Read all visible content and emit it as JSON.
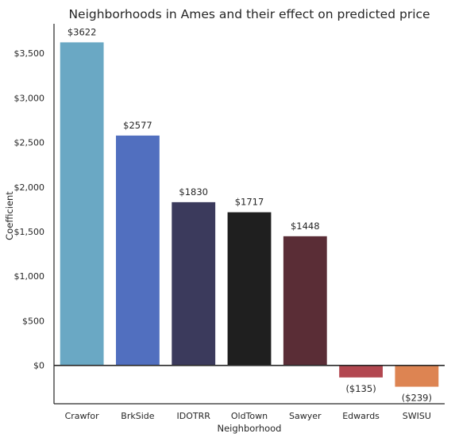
{
  "chart_data": {
    "type": "bar",
    "title": "Neighborhoods in Ames and their effect on predicted price",
    "xlabel": "Neighborhood",
    "ylabel": "Coefficient",
    "categories": [
      "Crawfor",
      "BrkSide",
      "IDOTRR",
      "OldTown",
      "Sawyer",
      "Edwards",
      "SWISU"
    ],
    "values": [
      3622,
      2577,
      1830,
      1717,
      1448,
      -135,
      -239
    ],
    "value_labels": [
      "$3622",
      "$2577",
      "$1830",
      "$1717",
      "$1448",
      "($135)",
      "($239)"
    ],
    "colors": [
      "#6aa8c4",
      "#516fbf",
      "#3b3a5c",
      "#1f1f1f",
      "#5a2d36",
      "#b24750",
      "#dd8452"
    ],
    "yticks": [
      0,
      500,
      1000,
      1500,
      2000,
      2500,
      3000,
      3500
    ],
    "ytick_labels": [
      "$0",
      "$500",
      "$1,000",
      "$1,500",
      "$2,000",
      "$2,500",
      "$3,000",
      "$3,500"
    ],
    "ylim": [
      -430,
      3830
    ],
    "grid": false
  }
}
